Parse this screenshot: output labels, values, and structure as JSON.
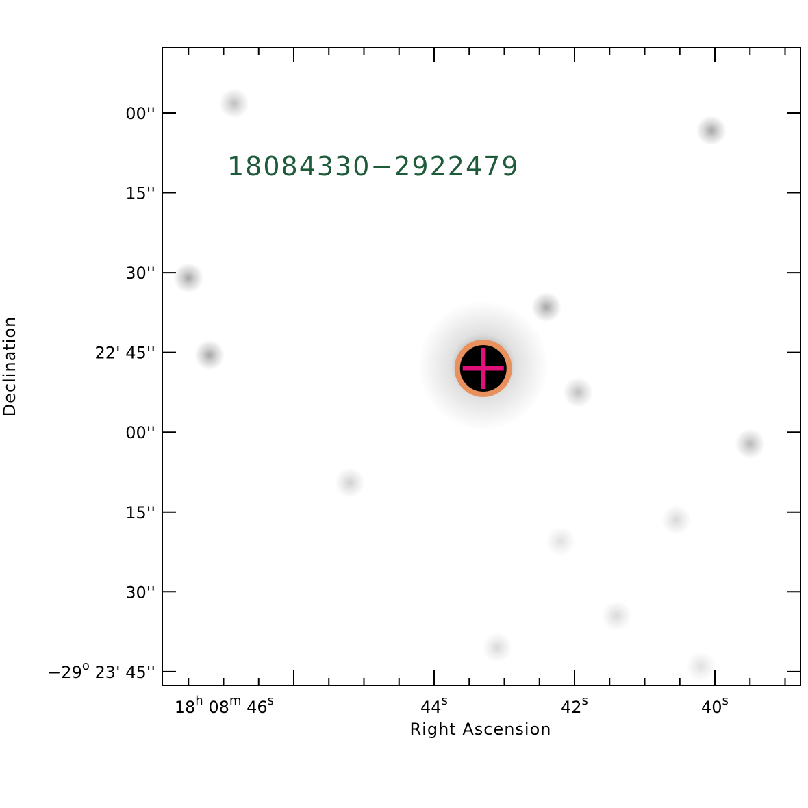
{
  "chart_data": {
    "type": "scatter",
    "title": "",
    "annotation": "18084330−2922479",
    "xlabel": "Right Ascension",
    "ylabel": "Declination",
    "x_ticks": [
      {
        "h": "18",
        "m": "08",
        "s": "46",
        "value_s": 46
      },
      {
        "s": "44",
        "value_s": 44
      },
      {
        "s": "42",
        "value_s": 42
      },
      {
        "s": "40",
        "value_s": 40
      }
    ],
    "y_ticks": [
      {
        "label": "00''",
        "value_arcsec": 0
      },
      {
        "label": "15''",
        "value_arcsec": 15
      },
      {
        "label": "30''",
        "value_arcsec": 30
      },
      {
        "label": "22' 45''",
        "value_arcsec": 45
      },
      {
        "label": "00''",
        "value_arcsec": 60
      },
      {
        "label": "15''",
        "value_arcsec": 75
      },
      {
        "label": "30''",
        "value_arcsec": 90
      },
      {
        "deg": "−29",
        "deg_sup": "o",
        "rest": " 23' 45''",
        "value_arcsec": 105
      }
    ],
    "target": {
      "ra_s": 43.3,
      "dec_arcsec": 48
    },
    "marker_colors": {
      "circle": "#e8905e",
      "cross": "#e0127a",
      "source": "#000000"
    },
    "annotation_color": "#1e5b3a",
    "background_stars": [
      {
        "ra_s": 46.85,
        "dec_arcsec": -1.8,
        "strength": 0.25
      },
      {
        "ra_s": 40.05,
        "dec_arcsec": 3.3,
        "strength": 0.35
      },
      {
        "ra_s": 47.5,
        "dec_arcsec": 31,
        "strength": 0.35
      },
      {
        "ra_s": 42.4,
        "dec_arcsec": 36.5,
        "strength": 0.35
      },
      {
        "ra_s": 47.2,
        "dec_arcsec": 45.5,
        "strength": 0.35
      },
      {
        "ra_s": 41.95,
        "dec_arcsec": 52.5,
        "strength": 0.25
      },
      {
        "ra_s": 39.5,
        "dec_arcsec": 62.2,
        "strength": 0.28
      },
      {
        "ra_s": 45.2,
        "dec_arcsec": 69.5,
        "strength": 0.18
      },
      {
        "ra_s": 40.55,
        "dec_arcsec": 76.5,
        "strength": 0.15
      },
      {
        "ra_s": 42.2,
        "dec_arcsec": 80.5,
        "strength": 0.12
      },
      {
        "ra_s": 41.4,
        "dec_arcsec": 94.5,
        "strength": 0.15
      },
      {
        "ra_s": 43.1,
        "dec_arcsec": 100.5,
        "strength": 0.15
      },
      {
        "ra_s": 40.2,
        "dec_arcsec": 104,
        "strength": 0.12
      }
    ]
  }
}
